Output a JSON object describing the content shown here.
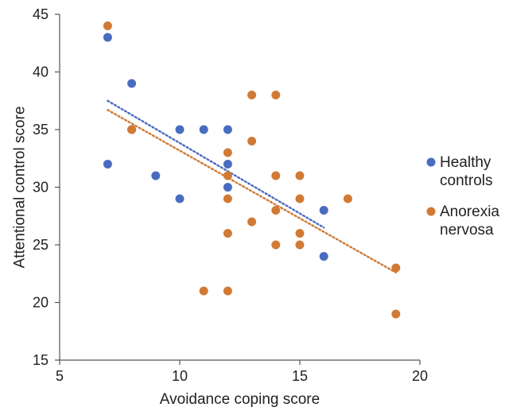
{
  "chart_data": {
    "type": "scatter",
    "title": "",
    "xlabel": "Avoidance coping score",
    "ylabel": "Attentional control score",
    "xlim": [
      5,
      20
    ],
    "ylim": [
      15,
      45
    ],
    "xticks": [
      5,
      10,
      15,
      20
    ],
    "yticks": [
      15,
      20,
      25,
      30,
      35,
      40,
      45
    ],
    "grid": false,
    "legend_position": "right",
    "series": [
      {
        "name": "Healthy controls",
        "name_lines": [
          "Healthy",
          "controls"
        ],
        "color": "#4a6cc0",
        "points": [
          [
            7,
            43
          ],
          [
            7,
            32
          ],
          [
            8,
            39
          ],
          [
            8,
            35
          ],
          [
            9,
            31
          ],
          [
            10,
            35
          ],
          [
            10,
            29
          ],
          [
            11,
            35
          ],
          [
            12,
            35
          ],
          [
            12,
            32
          ],
          [
            12,
            30
          ],
          [
            16,
            28
          ],
          [
            16,
            24
          ]
        ],
        "trendline": {
          "style": "dotted",
          "from": [
            7,
            37.5
          ],
          "to": [
            16,
            26.5
          ]
        }
      },
      {
        "name": "Anorexia nervosa",
        "name_lines": [
          "Anorexia",
          "nervosa"
        ],
        "color": "#d07a35",
        "points": [
          [
            7,
            44
          ],
          [
            8,
            35
          ],
          [
            11,
            21
          ],
          [
            12,
            33
          ],
          [
            12,
            31
          ],
          [
            12,
            29
          ],
          [
            12,
            26
          ],
          [
            12,
            21
          ],
          [
            13,
            38
          ],
          [
            13,
            34
          ],
          [
            13,
            27
          ],
          [
            14,
            38
          ],
          [
            14,
            31
          ],
          [
            14,
            28
          ],
          [
            14,
            25
          ],
          [
            15,
            31
          ],
          [
            15,
            29
          ],
          [
            15,
            26
          ],
          [
            15,
            25
          ],
          [
            17,
            29
          ],
          [
            19,
            23
          ],
          [
            19,
            19
          ]
        ],
        "trendline": {
          "style": "dotted",
          "from": [
            7,
            36.7
          ],
          "to": [
            19,
            22.6
          ]
        }
      }
    ]
  }
}
